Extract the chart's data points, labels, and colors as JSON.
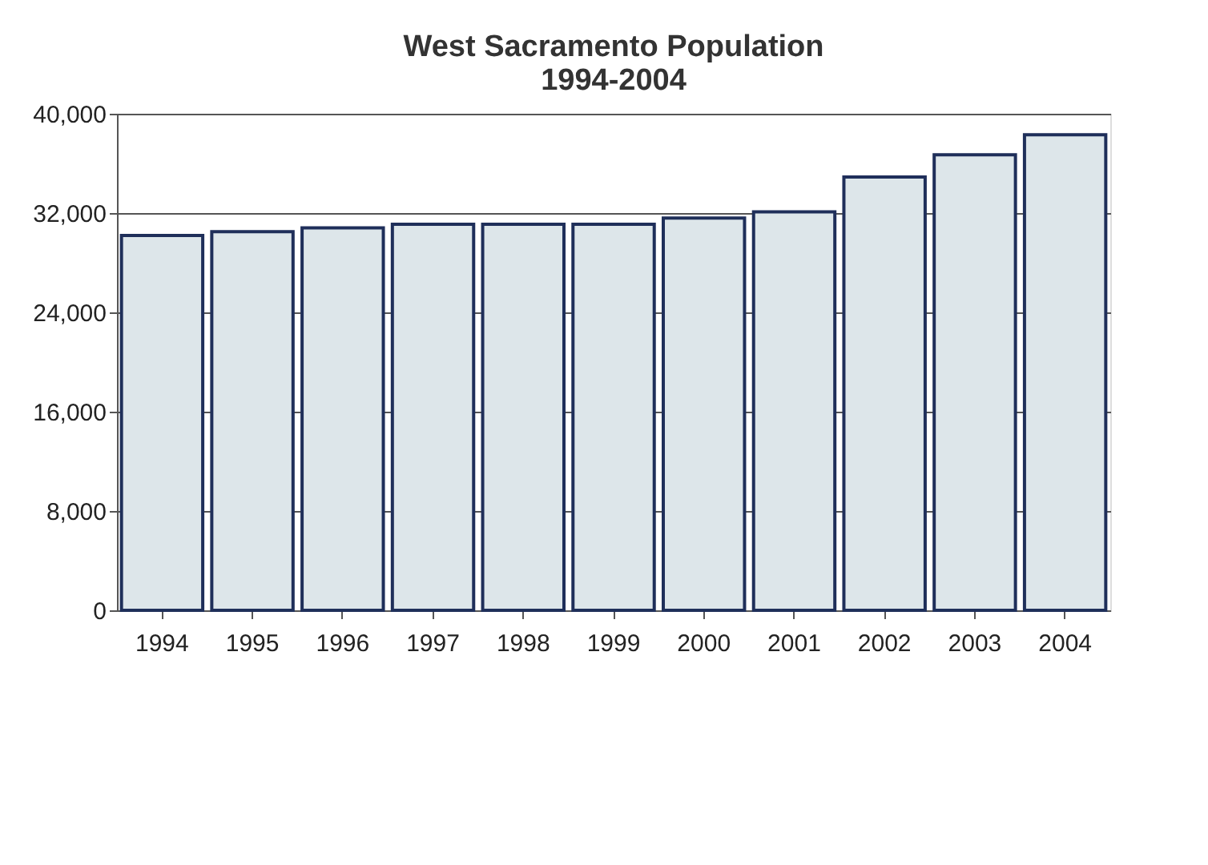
{
  "chart_data": {
    "type": "bar",
    "title": [
      "West Sacramento Population",
      "1994-2004"
    ],
    "categories": [
      "1994",
      "1995",
      "1996",
      "1997",
      "1998",
      "1999",
      "2000",
      "2001",
      "2002",
      "2003",
      "2004"
    ],
    "values": [
      30200,
      30500,
      30800,
      31100,
      31100,
      31100,
      31600,
      32100,
      34900,
      36700,
      38300
    ],
    "color": "#dde6ea",
    "ylim": [
      0,
      40000
    ],
    "yticks": [
      {
        "value": 0,
        "label": "0"
      },
      {
        "value": 8000,
        "label": "8,000"
      },
      {
        "value": 16000,
        "label": "16,000"
      },
      {
        "value": 24000,
        "label": "24,000"
      },
      {
        "value": 32000,
        "label": "32,000"
      },
      {
        "value": 40000,
        "label": "40,000"
      }
    ],
    "grid": "y"
  }
}
